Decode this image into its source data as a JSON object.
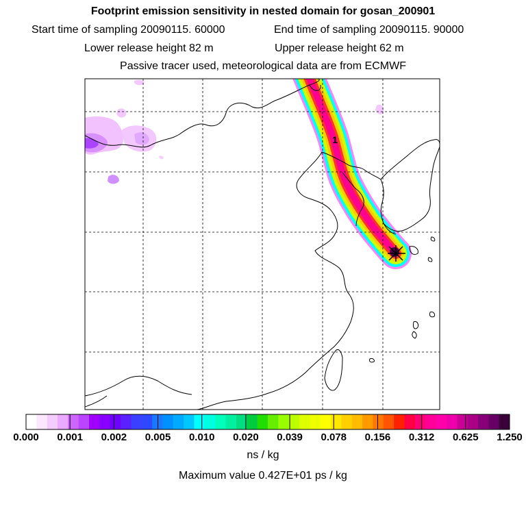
{
  "header": {
    "title": "Footprint emission sensitivity in nested domain for gosan_200901",
    "start_label": "Start time of sampling 20090115. 60000",
    "end_label": "End time of sampling 20090115. 90000",
    "lower_label": "Lower release height   82 m",
    "upper_label": "Upper release height   62 m",
    "tracer_line": "Passive tracer used, meteorological data are from ECMWF"
  },
  "map": {
    "plume_label": "1",
    "plume_colors": [
      "#ff80ff",
      "#00ffff",
      "#ccff00",
      "#ffcc00",
      "#ff3030",
      "#ff0090",
      "#4a0048"
    ]
  },
  "colorbar": {
    "ticks": [
      "0.000",
      "0.001",
      "0.002",
      "0.005",
      "0.010",
      "0.020",
      "0.039",
      "0.078",
      "0.156",
      "0.312",
      "0.625",
      "1.250"
    ],
    "colors": [
      "#ffffff",
      "#fbe8ff",
      "#f4ccff",
      "#eaaaff",
      "#cc66ff",
      "#bb44ff",
      "#a000ff",
      "#8800ff",
      "#7000ff",
      "#5a20ff",
      "#3a40ff",
      "#2e48ff",
      "#1878ff",
      "#0090ff",
      "#00aaff",
      "#00c8ff",
      "#00ffff",
      "#00ffe0",
      "#00ffbb",
      "#00f0a0",
      "#00dd80",
      "#00cc40",
      "#22dd00",
      "#66ee00",
      "#99ff00",
      "#bbff00",
      "#ddff00",
      "#eeff00",
      "#ffff00",
      "#ffe800",
      "#ffd000",
      "#ffbb00",
      "#ff9900",
      "#ff7700",
      "#ff5500",
      "#ff2200",
      "#ff0044",
      "#ff0077",
      "#ff0099",
      "#ff00aa",
      "#ee00aa",
      "#cc0099",
      "#aa0088",
      "#880077",
      "#660066",
      "#3a003a"
    ],
    "unit": "ns / kg",
    "max_text": "Maximum value  0.427E+01 ps / kg"
  }
}
